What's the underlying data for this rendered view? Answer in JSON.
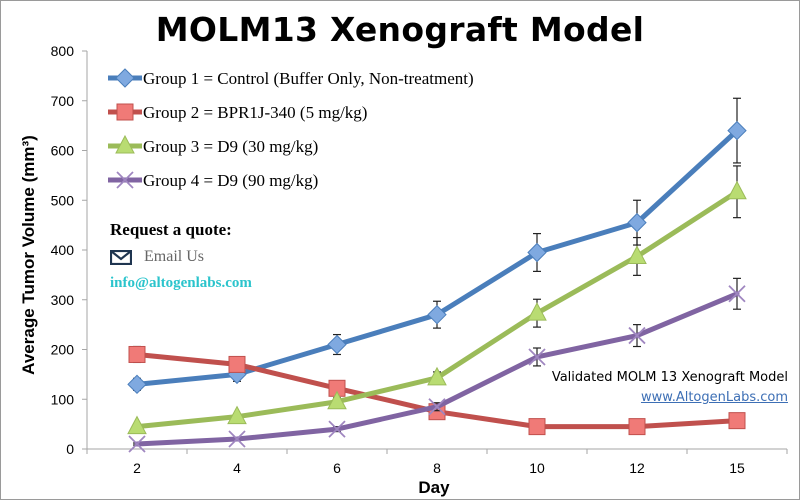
{
  "chart_data": {
    "type": "line",
    "title": "MOLM13 Xenograft Model",
    "xlabel": "Day",
    "ylabel": "Average Tumor Volume (mm³)",
    "ylim": [
      0,
      800
    ],
    "yticks": [
      "0",
      "100",
      "200",
      "300",
      "400",
      "500",
      "600",
      "700",
      "800"
    ],
    "categories": [
      "2",
      "4",
      "6",
      "8",
      "10",
      "12",
      "15"
    ],
    "grid": false,
    "legend_position": "top-left",
    "series": [
      {
        "name": "Group 1 = Control (Buffer Only, Non-treatment)",
        "color": "#4a7ebb",
        "marker": "diamond",
        "values": [
          130,
          150,
          210,
          270,
          395,
          455,
          640
        ],
        "errors": [
          12,
          14,
          20,
          27,
          38,
          45,
          65
        ]
      },
      {
        "name": "Group 2 = BPR1J-340 (5 mg/kg)",
        "color": "#c0504d",
        "marker": "square",
        "values": [
          190,
          170,
          122,
          75,
          45,
          45,
          57
        ],
        "errors": [
          16,
          14,
          10,
          8,
          5,
          5,
          6
        ]
      },
      {
        "name": "Group 3 = D9 (30 mg/kg)",
        "color": "#9bbb59",
        "marker": "triangle",
        "values": [
          45,
          65,
          95,
          143,
          273,
          387,
          517
        ],
        "errors": [
          5,
          6,
          8,
          12,
          28,
          38,
          52
        ]
      },
      {
        "name": "Group 4 = D9 (90 mg/kg)",
        "color": "#8064a2",
        "marker": "x",
        "values": [
          10,
          20,
          40,
          85,
          185,
          228,
          312
        ],
        "errors": [
          2,
          3,
          5,
          8,
          18,
          22,
          31
        ]
      }
    ]
  },
  "promo": {
    "request_quote": "Request a quote:",
    "email_label": "Email Us",
    "email_address": "info@altogenlabs.com",
    "validated_text": "Validated MOLM 13 Xenograft Model",
    "website": "www.AltogenLabs.com"
  }
}
